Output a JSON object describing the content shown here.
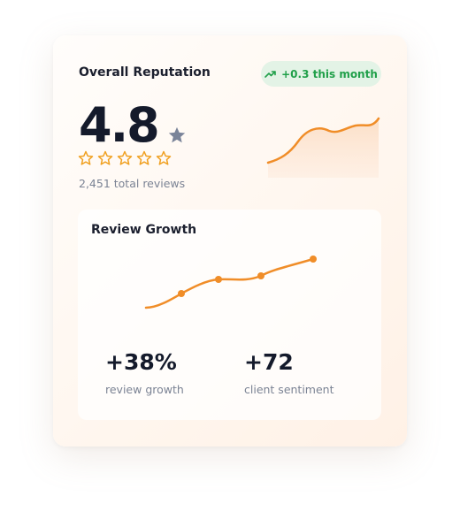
{
  "header": {
    "title": "Overall Reputation",
    "badge": "+0.3 this month"
  },
  "rating": {
    "value": "4.8",
    "total": "2,451 total reviews"
  },
  "growth": {
    "title": "Review Growth",
    "stats": [
      {
        "value": "+38%",
        "label": "review growth"
      },
      {
        "value": "+72",
        "label": "client sentiment"
      }
    ]
  }
}
